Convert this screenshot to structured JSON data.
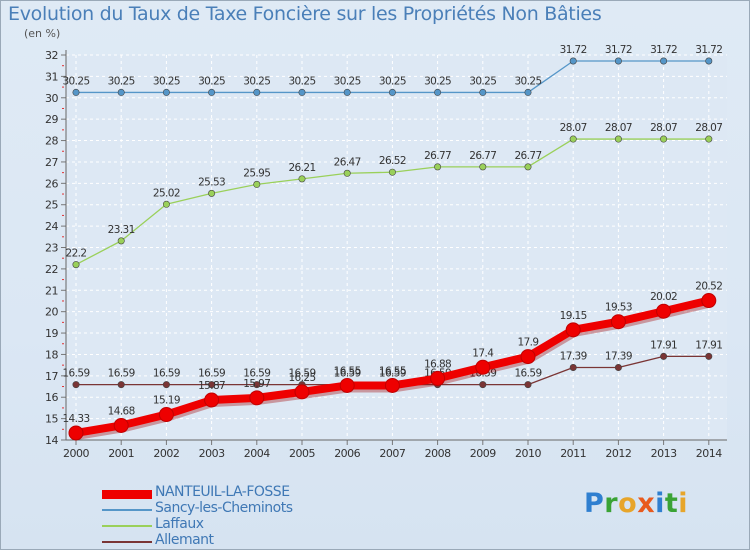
{
  "title": "Evolution du Taux de Taxe Foncière sur les Propriétés Non Bâties",
  "unit_label": "(en %)",
  "chart_data": {
    "type": "line",
    "title": "Evolution du Taux de Taxe Foncière sur les Propriétés Non Bâties",
    "ylabel": "(en %)",
    "xlabel": "",
    "ylim": [
      14,
      32
    ],
    "yticks": [
      "14",
      "15",
      "16",
      "17",
      "18",
      "19",
      "20",
      "21",
      "22",
      "23",
      "24",
      "25",
      "26",
      "27",
      "28",
      "29",
      "30",
      "31",
      "32"
    ],
    "categories": [
      "2000",
      "2001",
      "2002",
      "2003",
      "2004",
      "2005",
      "2006",
      "2007",
      "2008",
      "2009",
      "2010",
      "2011",
      "2012",
      "2013",
      "2014"
    ],
    "series": [
      {
        "name": "NANTEUIL-LA-FOSSE",
        "color": "#ee0000",
        "values": [
          14.33,
          14.68,
          15.19,
          15.87,
          15.97,
          16.25,
          16.55,
          16.55,
          16.88,
          17.4,
          17.9,
          19.15,
          19.53,
          20.02,
          20.52
        ],
        "labels": [
          "14.33",
          "14.68",
          "15.19",
          "15.87",
          "15.97",
          "16.25",
          "16.55",
          "16.55",
          "16.88",
          "17.4",
          "17.9",
          "19.15",
          "19.53",
          "20.02",
          "20.52"
        ]
      },
      {
        "name": "Sancy-les-Cheminots",
        "color": "#5596c8",
        "values": [
          30.25,
          30.25,
          30.25,
          30.25,
          30.25,
          30.25,
          30.25,
          30.25,
          30.25,
          30.25,
          30.25,
          31.72,
          31.72,
          31.72,
          31.72
        ],
        "labels": [
          "30.25",
          "30.25",
          "30.25",
          "30.25",
          "30.25",
          "30.25",
          "30.25",
          "30.25",
          "30.25",
          "30.25",
          "30.25",
          "31.72",
          "31.72",
          "31.72",
          "31.72"
        ]
      },
      {
        "name": "Laffaux",
        "color": "#9ad05a",
        "values": [
          22.2,
          23.31,
          25.02,
          25.53,
          25.95,
          26.21,
          26.47,
          26.52,
          26.77,
          26.77,
          26.77,
          28.07,
          28.07,
          28.07,
          28.07
        ],
        "labels": [
          "22.2",
          "23.31",
          "25.02",
          "25.53",
          "25.95",
          "26.21",
          "26.47",
          "26.52",
          "26.77",
          "26.77",
          "26.77",
          "28.07",
          "28.07",
          "28.07",
          "28.07"
        ]
      },
      {
        "name": "Allemant",
        "color": "#7a3535",
        "values": [
          16.59,
          16.59,
          16.59,
          16.59,
          16.59,
          16.59,
          16.59,
          16.59,
          16.59,
          16.59,
          16.59,
          17.39,
          17.39,
          17.91,
          17.91
        ],
        "labels": [
          "16.59",
          "16.59",
          "16.59",
          "16.59",
          "16.59",
          "16.59",
          "16.59",
          "16.59",
          "16.59",
          "16.59",
          "16.59",
          "17.39",
          "17.39",
          "17.91",
          "17.91"
        ]
      }
    ],
    "legend": "bottom-left"
  },
  "legend": {
    "items": [
      {
        "label": "NANTEUIL-LA-FOSSE",
        "color": "#ee0000"
      },
      {
        "label": "Sancy-les-Cheminots",
        "color": "#5596c8"
      },
      {
        "label": "Laffaux",
        "color": "#9ad05a"
      },
      {
        "label": "Allemant",
        "color": "#7a3535"
      }
    ]
  },
  "logo": {
    "letters": [
      "P",
      "r",
      "o",
      "x",
      "i",
      "t",
      "i"
    ],
    "colors": [
      "#2f7fd0",
      "#3aa335",
      "#e7a52a",
      "#e85a1e",
      "#2f7fd0",
      "#3aa335",
      "#e7a52a"
    ],
    "text": "Proxiti"
  }
}
